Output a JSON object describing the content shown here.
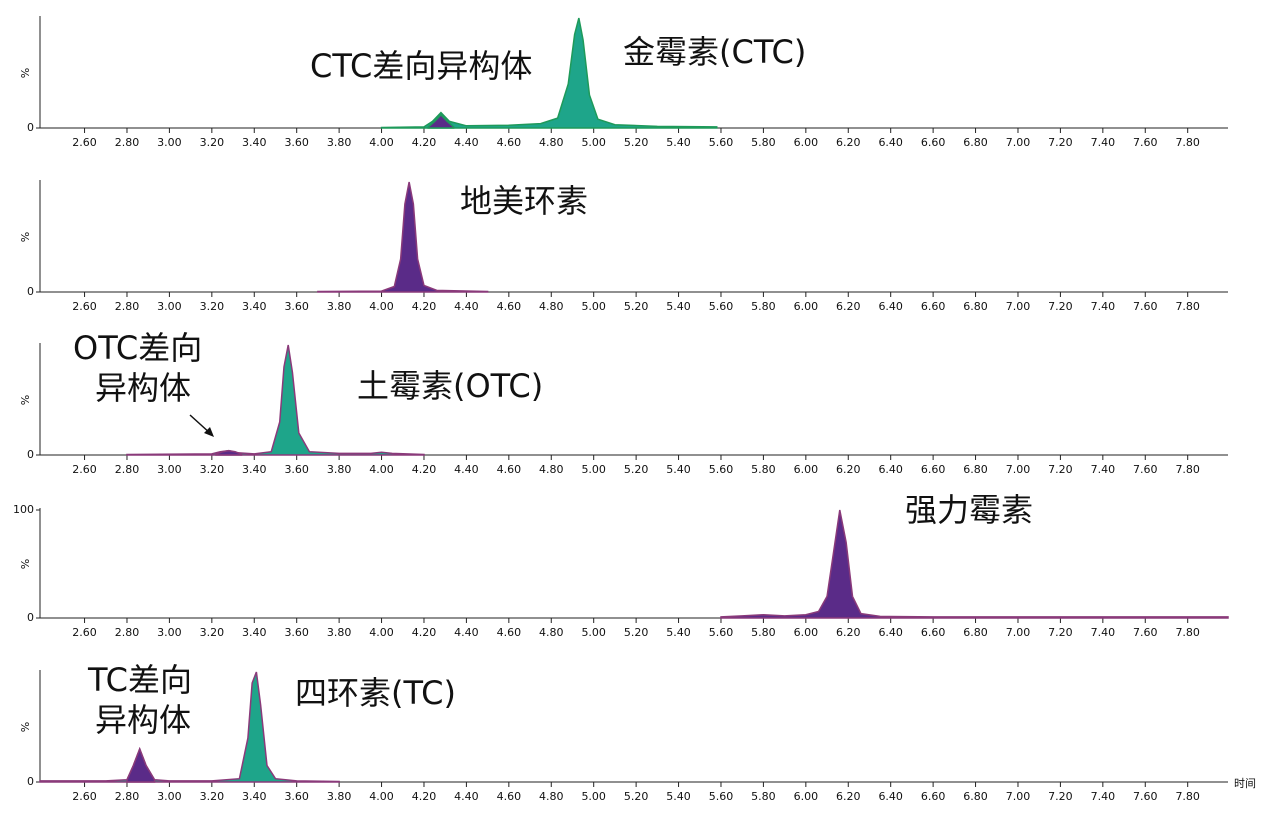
{
  "chart_data": [
    {
      "type": "area",
      "ylabel": "%",
      "line_color": "#1e9a5a",
      "annotations": [
        "CTC差向异构体",
        "金霉素(CTC)"
      ],
      "xlim": [
        2.39,
        7.99
      ],
      "ylim": [
        0,
        100
      ],
      "yticks": [
        0
      ],
      "xticks": [
        {
          "value": 2.6,
          "label": "2.60"
        },
        {
          "value": 2.8,
          "label": "2.80"
        },
        {
          "value": 3,
          "label": "3.00"
        },
        {
          "value": 3.2,
          "label": "3.20"
        },
        {
          "value": 3.4,
          "label": "3.40"
        },
        {
          "value": 3.6,
          "label": "3.60"
        },
        {
          "value": 3.8,
          "label": "3.80"
        },
        {
          "value": 4,
          "label": "4.00"
        },
        {
          "value": 4.2,
          "label": "4.20"
        },
        {
          "value": 4.4,
          "label": "4.40"
        },
        {
          "value": 4.6,
          "label": "4.60"
        },
        {
          "value": 4.8,
          "label": "4.80"
        },
        {
          "value": 5,
          "label": "5.00"
        },
        {
          "value": 5.2,
          "label": "5.20"
        },
        {
          "value": 5.4,
          "label": "5.40"
        },
        {
          "value": 5.6,
          "label": "5.60"
        },
        {
          "value": 5.8,
          "label": "5.80"
        },
        {
          "value": 6,
          "label": "6.00"
        },
        {
          "value": 6.2,
          "label": "6.20"
        },
        {
          "value": 6.4,
          "label": "6.40"
        },
        {
          "value": 6.6,
          "label": "6.60"
        },
        {
          "value": 6.8,
          "label": "6.80"
        },
        {
          "value": 7,
          "label": "7.00"
        },
        {
          "value": 7.2,
          "label": "7.20"
        },
        {
          "value": 7.4,
          "label": "7.40"
        },
        {
          "value": 7.6,
          "label": "7.60"
        },
        {
          "value": 7.8,
          "label": "7.80"
        }
      ],
      "series": [
        {
          "color": "#1ea58a",
          "x": [
            4.0,
            4.2,
            4.24,
            4.28,
            4.32,
            4.4,
            4.6,
            4.75,
            4.83,
            4.88,
            4.91,
            4.93,
            4.95,
            4.98,
            5.02,
            5.1,
            5.3,
            5.58
          ],
          "values": [
            0.5,
            1,
            6,
            14,
            6,
            2,
            2.5,
            4,
            9,
            40,
            85,
            100,
            80,
            30,
            8,
            3,
            1.5,
            1
          ]
        },
        {
          "color": "#5a2b88",
          "x": [
            4.22,
            4.25,
            4.28,
            4.31,
            4.34
          ],
          "values": [
            1,
            6,
            12,
            6,
            1
          ]
        }
      ]
    },
    {
      "type": "area",
      "ylabel": "%",
      "line_color": "#8a3a7a",
      "annotations": [
        "地美环素"
      ],
      "xlim": [
        2.39,
        7.99
      ],
      "ylim": [
        0,
        100
      ],
      "yticks": [
        0
      ],
      "xticks": [
        {
          "value": 2.6,
          "label": "2.60"
        },
        {
          "value": 2.8,
          "label": "2.80"
        },
        {
          "value": 3,
          "label": "3.00"
        },
        {
          "value": 3.2,
          "label": "3.20"
        },
        {
          "value": 3.4,
          "label": "3.40"
        },
        {
          "value": 3.6,
          "label": "3.60"
        },
        {
          "value": 3.8,
          "label": "3.80"
        },
        {
          "value": 4,
          "label": "4.00"
        },
        {
          "value": 4.2,
          "label": "4.20"
        },
        {
          "value": 4.4,
          "label": "4.40"
        },
        {
          "value": 4.6,
          "label": "4.60"
        },
        {
          "value": 4.8,
          "label": "4.80"
        },
        {
          "value": 5,
          "label": "5.00"
        },
        {
          "value": 5.2,
          "label": "5.20"
        },
        {
          "value": 5.4,
          "label": "5.40"
        },
        {
          "value": 5.6,
          "label": "5.60"
        },
        {
          "value": 5.8,
          "label": "5.80"
        },
        {
          "value": 6,
          "label": "6.00"
        },
        {
          "value": 6.2,
          "label": "6.20"
        },
        {
          "value": 6.4,
          "label": "6.40"
        },
        {
          "value": 6.6,
          "label": "6.60"
        },
        {
          "value": 6.8,
          "label": "6.80"
        },
        {
          "value": 7,
          "label": "7.00"
        },
        {
          "value": 7.2,
          "label": "7.20"
        },
        {
          "value": 7.4,
          "label": "7.40"
        },
        {
          "value": 7.6,
          "label": "7.60"
        },
        {
          "value": 7.8,
          "label": "7.80"
        }
      ],
      "series": [
        {
          "color": "#5a2b88",
          "x": [
            3.7,
            4.0,
            4.06,
            4.09,
            4.11,
            4.13,
            4.15,
            4.17,
            4.2,
            4.26,
            4.5
          ],
          "values": [
            0.5,
            0.8,
            5,
            30,
            80,
            100,
            80,
            30,
            6,
            1.5,
            0.5
          ]
        }
      ]
    },
    {
      "type": "area",
      "ylabel": "%",
      "line_color": "#8a3a7a",
      "annotations": [
        "OTC差向",
        "异构体",
        "土霉素(OTC)"
      ],
      "xlim": [
        2.39,
        7.99
      ],
      "ylim": [
        0,
        100
      ],
      "yticks": [
        0
      ],
      "xticks": [
        {
          "value": 2.6,
          "label": "2.60"
        },
        {
          "value": 2.8,
          "label": "2.80"
        },
        {
          "value": 3,
          "label": "3.00"
        },
        {
          "value": 3.2,
          "label": "3.20"
        },
        {
          "value": 3.4,
          "label": "3.40"
        },
        {
          "value": 3.6,
          "label": "3.60"
        },
        {
          "value": 3.8,
          "label": "3.80"
        },
        {
          "value": 4,
          "label": "4.00"
        },
        {
          "value": 4.2,
          "label": "4.20"
        },
        {
          "value": 4.4,
          "label": "4.40"
        },
        {
          "value": 4.6,
          "label": "4.60"
        },
        {
          "value": 4.8,
          "label": "4.80"
        },
        {
          "value": 5,
          "label": "5.00"
        },
        {
          "value": 5.2,
          "label": "5.20"
        },
        {
          "value": 5.4,
          "label": "5.40"
        },
        {
          "value": 5.6,
          "label": "5.60"
        },
        {
          "value": 5.8,
          "label": "5.80"
        },
        {
          "value": 6,
          "label": "6.00"
        },
        {
          "value": 6.2,
          "label": "6.20"
        },
        {
          "value": 6.4,
          "label": "6.40"
        },
        {
          "value": 6.6,
          "label": "6.60"
        },
        {
          "value": 6.8,
          "label": "6.80"
        },
        {
          "value": 7,
          "label": "7.00"
        },
        {
          "value": 7.2,
          "label": "7.20"
        },
        {
          "value": 7.4,
          "label": "7.40"
        },
        {
          "value": 7.6,
          "label": "7.60"
        },
        {
          "value": 7.8,
          "label": "7.80"
        }
      ],
      "series": [
        {
          "color": "#1ea58a",
          "x": [
            2.8,
            3.2,
            3.24,
            3.28,
            3.32,
            3.4,
            3.48,
            3.52,
            3.54,
            3.56,
            3.58,
            3.61,
            3.66,
            3.8,
            3.95,
            4.0,
            4.05,
            4.2
          ],
          "values": [
            0.5,
            1,
            3,
            4,
            2,
            1,
            3,
            30,
            80,
            100,
            75,
            20,
            3,
            1.5,
            1.5,
            2.5,
            1.5,
            0.5
          ]
        },
        {
          "color": "#5a2b88",
          "x": [
            3.22,
            3.25,
            3.28,
            3.31,
            3.34
          ],
          "values": [
            0.8,
            3,
            4,
            3,
            0.8
          ]
        }
      ]
    },
    {
      "type": "area",
      "ylabel": "%",
      "line_color": "#8a3a7a",
      "annotations": [
        "强力霉素"
      ],
      "xlim": [
        2.39,
        7.99
      ],
      "ylim": [
        0,
        100
      ],
      "yticks": [
        0,
        100
      ],
      "xticks": [
        {
          "value": 2.6,
          "label": "2.60"
        },
        {
          "value": 2.8,
          "label": "2.80"
        },
        {
          "value": 3,
          "label": "3.00"
        },
        {
          "value": 3.2,
          "label": "3.20"
        },
        {
          "value": 3.4,
          "label": "3.40"
        },
        {
          "value": 3.6,
          "label": "3.60"
        },
        {
          "value": 3.8,
          "label": "3.80"
        },
        {
          "value": 4,
          "label": "4.00"
        },
        {
          "value": 4.2,
          "label": "4.20"
        },
        {
          "value": 4.4,
          "label": "4.40"
        },
        {
          "value": 4.6,
          "label": "4.60"
        },
        {
          "value": 4.8,
          "label": "4.80"
        },
        {
          "value": 5,
          "label": "5.00"
        },
        {
          "value": 5.2,
          "label": "5.20"
        },
        {
          "value": 5.4,
          "label": "5.40"
        },
        {
          "value": 5.6,
          "label": "5.60"
        },
        {
          "value": 5.8,
          "label": "5.80"
        },
        {
          "value": 6,
          "label": "6.00"
        },
        {
          "value": 6.2,
          "label": "6.20"
        },
        {
          "value": 6.4,
          "label": "6.40"
        },
        {
          "value": 6.6,
          "label": "6.60"
        },
        {
          "value": 6.8,
          "label": "6.80"
        },
        {
          "value": 7,
          "label": "7.00"
        },
        {
          "value": 7.2,
          "label": "7.20"
        },
        {
          "value": 7.4,
          "label": "7.40"
        },
        {
          "value": 7.6,
          "label": "7.60"
        },
        {
          "value": 7.8,
          "label": "7.80"
        }
      ],
      "series": [
        {
          "color": "#5a2b88",
          "x": [
            5.6,
            5.7,
            5.8,
            5.9,
            6.0,
            6.06,
            6.1,
            6.13,
            6.16,
            6.19,
            6.22,
            6.26,
            6.35,
            6.6,
            7.0,
            7.99
          ],
          "values": [
            1,
            2,
            3,
            2,
            3,
            6,
            20,
            60,
            100,
            70,
            20,
            4,
            1.5,
            1,
            1,
            1
          ]
        }
      ]
    },
    {
      "type": "area",
      "ylabel": "%",
      "xlabel": "时间",
      "line_color": "#8a3a7a",
      "annotations": [
        "TC差向",
        "异构体",
        "四环素(TC)"
      ],
      "xlim": [
        2.39,
        7.99
      ],
      "ylim": [
        0,
        100
      ],
      "yticks": [
        0
      ],
      "xticks": [
        {
          "value": 2.6,
          "label": "2.60"
        },
        {
          "value": 2.8,
          "label": "2.80"
        },
        {
          "value": 3,
          "label": "3.00"
        },
        {
          "value": 3.2,
          "label": "3.20"
        },
        {
          "value": 3.4,
          "label": "3.40"
        },
        {
          "value": 3.6,
          "label": "3.60"
        },
        {
          "value": 3.8,
          "label": "3.80"
        },
        {
          "value": 4,
          "label": "4.00"
        },
        {
          "value": 4.2,
          "label": "4.20"
        },
        {
          "value": 4.4,
          "label": "4.40"
        },
        {
          "value": 4.6,
          "label": "4.60"
        },
        {
          "value": 4.8,
          "label": "4.80"
        },
        {
          "value": 5,
          "label": "5.00"
        },
        {
          "value": 5.2,
          "label": "5.20"
        },
        {
          "value": 5.4,
          "label": "5.40"
        },
        {
          "value": 5.6,
          "label": "5.60"
        },
        {
          "value": 5.8,
          "label": "5.80"
        },
        {
          "value": 6,
          "label": "6.00"
        },
        {
          "value": 6.2,
          "label": "6.20"
        },
        {
          "value": 6.4,
          "label": "6.40"
        },
        {
          "value": 6.6,
          "label": "6.60"
        },
        {
          "value": 6.8,
          "label": "6.80"
        },
        {
          "value": 7,
          "label": "7.00"
        },
        {
          "value": 7.2,
          "label": "7.20"
        },
        {
          "value": 7.4,
          "label": "7.40"
        },
        {
          "value": 7.6,
          "label": "7.60"
        },
        {
          "value": 7.8,
          "label": "7.80"
        }
      ],
      "series": [
        {
          "color": "#1ea58a",
          "x": [
            2.39,
            2.7,
            2.8,
            2.83,
            2.86,
            2.89,
            2.93,
            3.0,
            3.2,
            3.33,
            3.37,
            3.39,
            3.41,
            3.43,
            3.46,
            3.5,
            3.6,
            3.8
          ],
          "values": [
            1,
            1,
            2,
            15,
            30,
            15,
            2,
            1,
            1,
            3,
            40,
            90,
            100,
            70,
            15,
            3,
            1,
            0.5
          ]
        },
        {
          "color": "#5a2b88",
          "x": [
            2.8,
            2.83,
            2.86,
            2.89,
            2.93
          ],
          "values": [
            2,
            15,
            30,
            15,
            2
          ]
        }
      ]
    }
  ]
}
